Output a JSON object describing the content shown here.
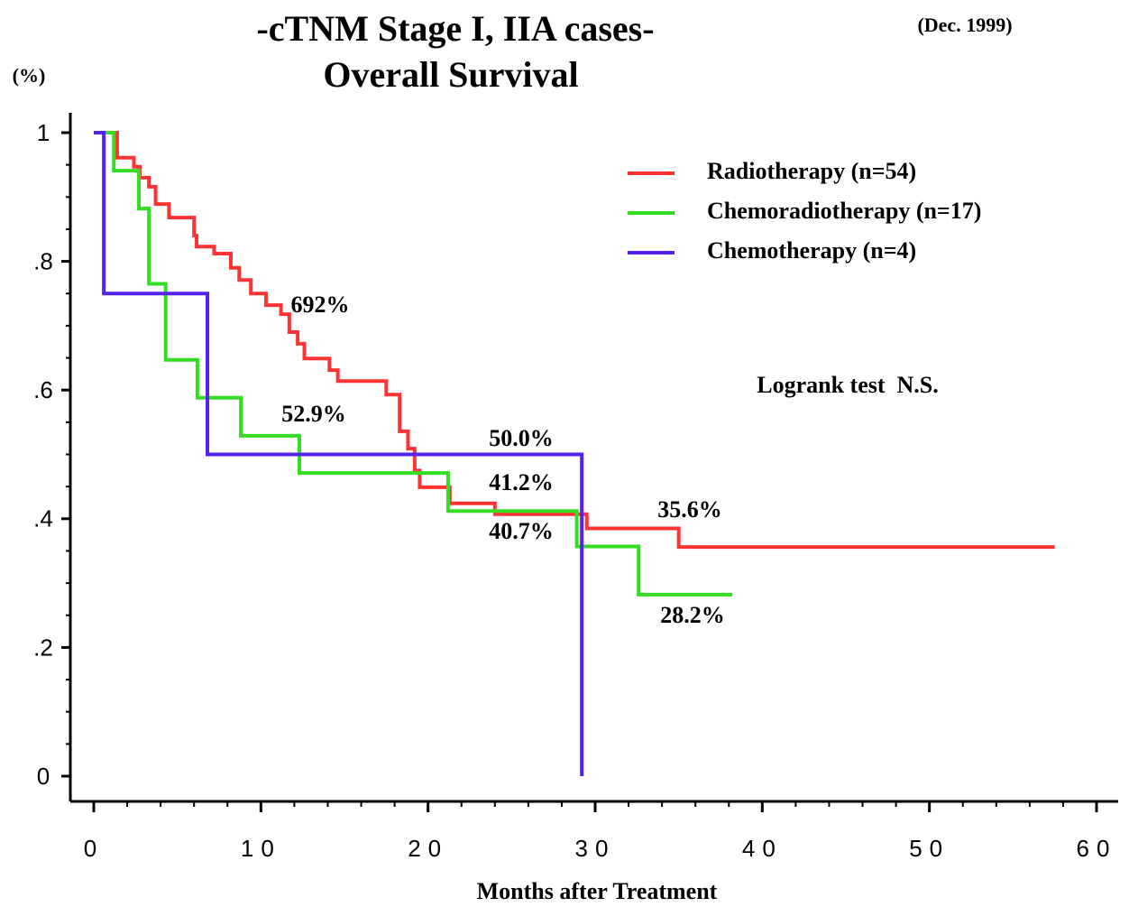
{
  "chart_data": {
    "type": "line",
    "title": "-cTNM Stage I, IIA cases-",
    "subtitle": "Overall Survival",
    "date_note": "(Dec. 1999)",
    "y_label": "(%)",
    "x_label": "Months after Treatment",
    "xlim": [
      0,
      60
    ],
    "xticks": [
      0,
      10,
      20,
      30,
      40,
      50,
      60
    ],
    "ylim": [
      0,
      1
    ],
    "yticks": [
      0,
      {
        "value": 0.2,
        "label": ".2"
      },
      {
        "value": 0.4,
        "label": ".4"
      },
      {
        "value": 0.6,
        "label": ".6"
      },
      {
        "value": 0.8,
        "label": ".8"
      },
      1
    ],
    "legend": "upper right",
    "series": [
      {
        "name": "Radiotherapy (n=54)",
        "color": "#ff3333",
        "x": [
          0,
          1.4,
          2.4,
          2.75,
          3.3,
          3.7,
          4.5,
          6.0,
          6.15,
          7.2,
          8.2,
          8.7,
          9.4,
          10.3,
          11.2,
          11.7,
          12.2,
          12.6,
          14.1,
          14.6,
          17.5,
          18.3,
          18.8,
          19.2,
          19.5,
          21.3,
          24.0,
          29.5,
          35.0,
          57.5
        ],
        "values": [
          1,
          0.961,
          0.947,
          0.93,
          0.916,
          0.889,
          0.868,
          0.84,
          0.823,
          0.812,
          0.79,
          0.771,
          0.75,
          0.732,
          0.718,
          0.69,
          0.672,
          0.649,
          0.631,
          0.614,
          0.593,
          0.536,
          0.509,
          0.475,
          0.449,
          0.424,
          0.407,
          0.385,
          0.356,
          0.356
        ]
      },
      {
        "name": "Chemoradiotherapy (n=17)",
        "color": "#33dd22",
        "x": [
          0,
          1.2,
          2.7,
          3.3,
          4.3,
          6.2,
          8.8,
          12.3,
          21.2,
          28.9,
          32.6,
          38.2
        ],
        "values": [
          1,
          0.941,
          0.882,
          0.765,
          0.647,
          0.588,
          0.529,
          0.471,
          0.412,
          0.357,
          0.282,
          0.282
        ]
      },
      {
        "name": "Chemotherapy (n=4)",
        "color": "#5522ee",
        "x": [
          0,
          0.6,
          6.8,
          29.2
        ],
        "values": [
          1,
          0.75,
          0.5,
          0
        ]
      }
    ],
    "annotations": [
      "692%",
      "52.9%",
      "50.0%",
      "41.2%",
      "40.7%",
      "35.6%",
      "28.2%",
      "Logrank test  N.S."
    ]
  }
}
